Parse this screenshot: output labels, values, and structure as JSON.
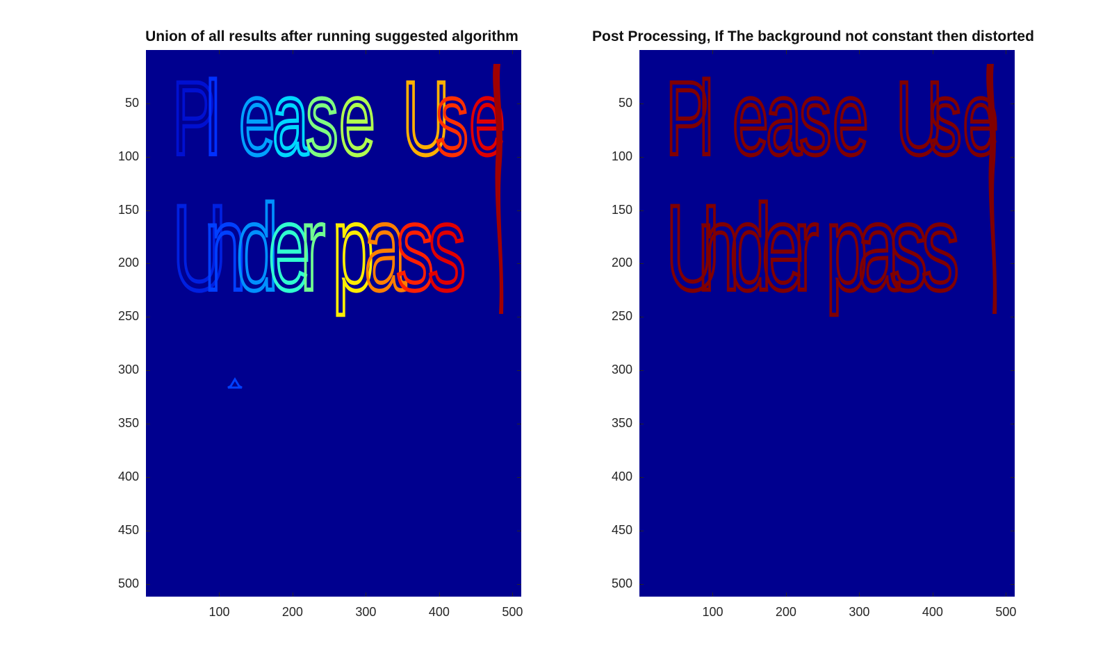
{
  "figure": {
    "left_title": "Union of all results after running suggested algorithm",
    "right_title": "Post Processing, If The background not constant then distorted",
    "y_ticks": [
      "50",
      "100",
      "150",
      "200",
      "250",
      "300",
      "350",
      "400",
      "450",
      "500"
    ],
    "x_ticks": [
      "100",
      "200",
      "300",
      "400",
      "500"
    ],
    "y_tick_values": [
      50,
      100,
      150,
      200,
      250,
      300,
      350,
      400,
      450,
      500
    ],
    "x_tick_values": [
      100,
      200,
      300,
      400,
      500
    ],
    "x_range": [
      0,
      512
    ],
    "y_range": [
      0,
      512
    ],
    "background_color": "#00008f",
    "text_line1_letters": [
      "P",
      "l",
      "e",
      "a",
      "s",
      "e",
      " ",
      "U",
      "s",
      "e"
    ],
    "text_line2_letters": [
      "U",
      "n",
      "d",
      "e",
      "r",
      "p",
      "a",
      "s",
      "s"
    ],
    "left_letter_colors_line1": [
      "#0010d0",
      "#0030ff",
      "#00a0ff",
      "#00d8ff",
      "#80ff80",
      "#b0ff50",
      "",
      "#ffb000",
      "#ff3000",
      "#e00000"
    ],
    "left_letter_colors_line2": [
      "#0020e0",
      "#0040ff",
      "#0090ff",
      "#30ffd0",
      "#70ff90",
      "#ffee00",
      "#ff8000",
      "#ff2000",
      "#e00000"
    ],
    "right_letter_color": "#800000"
  }
}
